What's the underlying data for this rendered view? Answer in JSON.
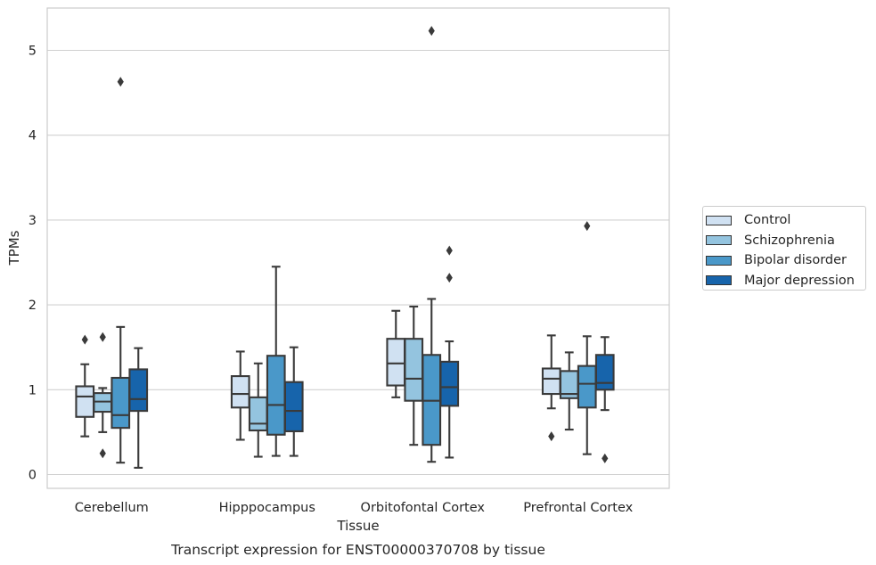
{
  "chart_data": {
    "type": "box",
    "title": "Transcript expression for ENST00000370708 by tissue",
    "xlabel": "Tissue",
    "ylabel": "TPMs",
    "ylim": [
      -0.17,
      5.5
    ],
    "yticks": [
      0,
      1,
      2,
      3,
      4,
      5
    ],
    "grid": true,
    "legend_position": "right",
    "categories": [
      "Cerebellum",
      "Hipppocampus",
      "Orbitofontal Cortex",
      "Prefrontal Cortex"
    ],
    "series": [
      {
        "name": "Control",
        "color": "#d0e1f2",
        "boxes": [
          {
            "whislo": 0.45,
            "q1": 0.68,
            "med": 0.92,
            "q3": 1.04,
            "whishi": 1.3,
            "fliers": [
              1.59
            ]
          },
          {
            "whislo": 0.41,
            "q1": 0.79,
            "med": 0.95,
            "q3": 1.16,
            "whishi": 1.45,
            "fliers": []
          },
          {
            "whislo": 0.91,
            "q1": 1.05,
            "med": 1.31,
            "q3": 1.6,
            "whishi": 1.93,
            "fliers": []
          },
          {
            "whislo": 0.78,
            "q1": 0.95,
            "med": 1.13,
            "q3": 1.25,
            "whishi": 1.64,
            "fliers": [
              0.45
            ]
          }
        ]
      },
      {
        "name": "Schizophrenia",
        "color": "#94c4df",
        "boxes": [
          {
            "whislo": 0.5,
            "q1": 0.74,
            "med": 0.86,
            "q3": 0.96,
            "whishi": 1.02,
            "fliers": [
              1.62,
              0.25
            ]
          },
          {
            "whislo": 0.21,
            "q1": 0.52,
            "med": 0.6,
            "q3": 0.91,
            "whishi": 1.31,
            "fliers": []
          },
          {
            "whislo": 0.35,
            "q1": 0.87,
            "med": 1.13,
            "q3": 1.6,
            "whishi": 1.98,
            "fliers": []
          },
          {
            "whislo": 0.53,
            "q1": 0.9,
            "med": 0.95,
            "q3": 1.22,
            "whishi": 1.44,
            "fliers": []
          }
        ]
      },
      {
        "name": "Bipolar disorder",
        "color": "#4a98c9",
        "boxes": [
          {
            "whislo": 0.14,
            "q1": 0.55,
            "med": 0.7,
            "q3": 1.14,
            "whishi": 1.74,
            "fliers": [
              4.63
            ]
          },
          {
            "whislo": 0.22,
            "q1": 0.47,
            "med": 0.82,
            "q3": 1.4,
            "whishi": 2.45,
            "fliers": []
          },
          {
            "whislo": 0.15,
            "q1": 0.35,
            "med": 0.87,
            "q3": 1.41,
            "whishi": 2.07,
            "fliers": [
              5.23
            ]
          },
          {
            "whislo": 0.24,
            "q1": 0.79,
            "med": 1.07,
            "q3": 1.28,
            "whishi": 1.63,
            "fliers": [
              2.93
            ]
          }
        ]
      },
      {
        "name": "Major depression",
        "color": "#1764ab",
        "boxes": [
          {
            "whislo": 0.08,
            "q1": 0.75,
            "med": 0.89,
            "q3": 1.24,
            "whishi": 1.49,
            "fliers": []
          },
          {
            "whislo": 0.22,
            "q1": 0.51,
            "med": 0.75,
            "q3": 1.09,
            "whishi": 1.5,
            "fliers": []
          },
          {
            "whislo": 0.2,
            "q1": 0.81,
            "med": 1.03,
            "q3": 1.33,
            "whishi": 1.57,
            "fliers": [
              2.64,
              2.32
            ]
          },
          {
            "whislo": 0.76,
            "q1": 1.0,
            "med": 1.08,
            "q3": 1.41,
            "whishi": 1.62,
            "fliers": [
              0.19
            ]
          }
        ]
      }
    ]
  }
}
